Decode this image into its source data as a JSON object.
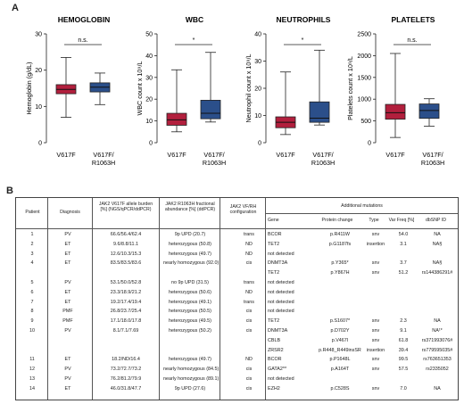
{
  "panel_a": {
    "letter": "A"
  },
  "panel_b": {
    "letter": "B"
  },
  "chart_data": [
    {
      "type": "box",
      "title": "HEMOGLOBIN",
      "ylabel": "Hemoglobin (g/dL)",
      "ylim": [
        0,
        30
      ],
      "yticks": [
        0,
        10,
        20,
        30
      ],
      "categories": [
        "V617F",
        "V617F/ R1063H"
      ],
      "significance": "n.s.",
      "boxes": [
        {
          "name": "V617F",
          "whisker_low": 7,
          "q1": 13.5,
          "median": 14.7,
          "q3": 16,
          "whisker_high": 23.5,
          "color": "#b21f3d"
        },
        {
          "name": "V617F/ R1063H",
          "whisker_low": 10.5,
          "q1": 14,
          "median": 15.3,
          "q3": 16.5,
          "whisker_high": 19.2,
          "color": "#2b4f8a"
        }
      ]
    },
    {
      "type": "box",
      "title": "WBC",
      "ylabel": "WBC count x 10⁹/L",
      "ylim": [
        0,
        50
      ],
      "yticks": [
        0,
        10,
        20,
        30,
        40,
        50
      ],
      "categories": [
        "V617F",
        "V617F/ R1063H"
      ],
      "significance": "*",
      "boxes": [
        {
          "name": "V617F",
          "whisker_low": 5,
          "q1": 8,
          "median": 10.5,
          "q3": 13.5,
          "whisker_high": 33.5,
          "color": "#b21f3d"
        },
        {
          "name": "V617F/ R1063H",
          "whisker_low": 9.5,
          "q1": 11,
          "median": 13.5,
          "q3": 19.5,
          "whisker_high": 41.5,
          "color": "#2b4f8a"
        }
      ]
    },
    {
      "type": "box",
      "title": "NEUTROPHILS",
      "ylabel": "Neutrophil count x 10⁹/L",
      "ylim": [
        0,
        40
      ],
      "yticks": [
        0,
        10,
        20,
        30,
        40
      ],
      "categories": [
        "V617F",
        "V617F/ R1063H"
      ],
      "significance": "*",
      "boxes": [
        {
          "name": "V617F",
          "whisker_low": 3,
          "q1": 5.5,
          "median": 7.5,
          "q3": 9.5,
          "whisker_high": 26,
          "color": "#b21f3d"
        },
        {
          "name": "V617F/ R1063H",
          "whisker_low": 6.5,
          "q1": 7.5,
          "median": 9,
          "q3": 15,
          "whisker_high": 34,
          "color": "#2b4f8a"
        }
      ]
    },
    {
      "type": "box",
      "title": "PLATELETS",
      "ylabel": "Platelets count x 10⁹/L",
      "ylim": [
        0,
        2500
      ],
      "yticks": [
        0,
        500,
        1000,
        1500,
        2000,
        2500
      ],
      "categories": [
        "V617F",
        "V617F/ R1063H"
      ],
      "significance": "n.s.",
      "boxes": [
        {
          "name": "V617F",
          "whisker_low": 120,
          "q1": 540,
          "median": 690,
          "q3": 880,
          "whisker_high": 2050,
          "color": "#b21f3d"
        },
        {
          "name": "V617F/ R1063H",
          "whisker_low": 380,
          "q1": 560,
          "median": 740,
          "q3": 890,
          "whisker_high": 1010,
          "color": "#2b4f8a"
        }
      ]
    }
  ],
  "table": {
    "headers": {
      "patient": "Patient",
      "diagnosis": "Diagnosis",
      "v617f": "JAK2 V617F allele burden [%] (NGS/qPCR/ddPCR)",
      "r1063h": "JAK2 R1063H fractional abundance [%] (ddPCR)",
      "config": "JAK2 VF/RH configuration",
      "additional": "Additional mutations",
      "gene": "Gene",
      "protein": "Protein change",
      "type": "Type",
      "vaf": "Var Freq [%]",
      "dbsnp": "dbSNP ID"
    },
    "rows": [
      [
        "1",
        "PV",
        "66.6/56.4/62.4",
        "9p UPD (20.7)",
        "trans",
        "BCOR",
        "p.R411W",
        "snv",
        "54.0",
        "NA"
      ],
      [
        "2",
        "ET",
        "9.6/8.8/11.1",
        "heterozygous (50.8)",
        "ND",
        "TET2",
        "p.G1187fs",
        "insertion",
        "3.1",
        "NA§"
      ],
      [
        "3",
        "ET",
        "12.6/10.3/15.3",
        "heterozygous (49.7)",
        "ND",
        "not detected",
        "",
        "",
        "",
        ""
      ],
      [
        "4",
        "ET",
        "83.5/83.5/83.6",
        "nearly homozygous (92.0)",
        "cis",
        "DNMT3A",
        "p.Y365*",
        "snv",
        "3.7",
        "NA§"
      ],
      [
        "",
        "",
        "",
        "",
        "",
        "TET2",
        "p.Y867H",
        "snv",
        "51.2",
        "rs144386291#"
      ],
      [
        "5",
        "PV",
        "53.1/50.0/52.8",
        "no 9p UPD (31.5)",
        "trans",
        "not detected",
        "",
        "",
        "",
        ""
      ],
      [
        "6",
        "ET",
        "23.3/18.9/21.2",
        "heterozygous (50.6)",
        "ND",
        "not detected",
        "",
        "",
        "",
        ""
      ],
      [
        "7",
        "ET",
        "19.2/17.4/19.4",
        "heterozygous (49.1)",
        "trans",
        "not detected",
        "",
        "",
        "",
        ""
      ],
      [
        "8",
        "PMF",
        "26.8/23.7/25.4",
        "heterozygous (50.5)",
        "cis",
        "not detected",
        "",
        "",
        "",
        ""
      ],
      [
        "9",
        "PMF",
        "17.1/18.0/17.8",
        "heterozygous (49.5)",
        "cis",
        "TET2",
        "p.S1607*",
        "snv",
        "2.3",
        "NA"
      ],
      [
        "10",
        "PV",
        "8.1/7.1/7.69",
        "heterozygous (50.2)",
        "cis",
        "DNMT3A",
        "p.D702Y",
        "snv",
        "9.1",
        "NA¹*"
      ],
      [
        "",
        "",
        "",
        "",
        "",
        "CBLB",
        "p.V467I",
        "snv",
        "61.8",
        "rs371993076#"
      ],
      [
        "",
        "",
        "",
        "",
        "",
        "ZRSR2",
        "p.R448_R449insSR",
        "insertion",
        "39.4",
        "rs779595035#"
      ],
      [
        "11",
        "ET",
        "18.2/ND/16.4",
        "heterozygous (49.7)",
        "ND",
        "BCOR",
        "p.P1648L",
        "snv",
        "99.5",
        "rs763651353"
      ],
      [
        "12",
        "PV",
        "73.2/72.7/73.2",
        "nearly homozygous (84.5)",
        "cis",
        "GATA2**",
        "p.A164T",
        "snv",
        "57.5",
        "rs2335052"
      ],
      [
        "13",
        "PV",
        "76.2/81.2/79.9",
        "nearly homozygous (89.1)",
        "cis",
        "not detected",
        "",
        "",
        "",
        ""
      ],
      [
        "14",
        "ET",
        "46.0/31.8/47.7",
        "9p UPD (27.6)",
        "cis",
        "EZH2",
        "p.C528S",
        "snv",
        "7.0",
        "NA"
      ]
    ]
  }
}
